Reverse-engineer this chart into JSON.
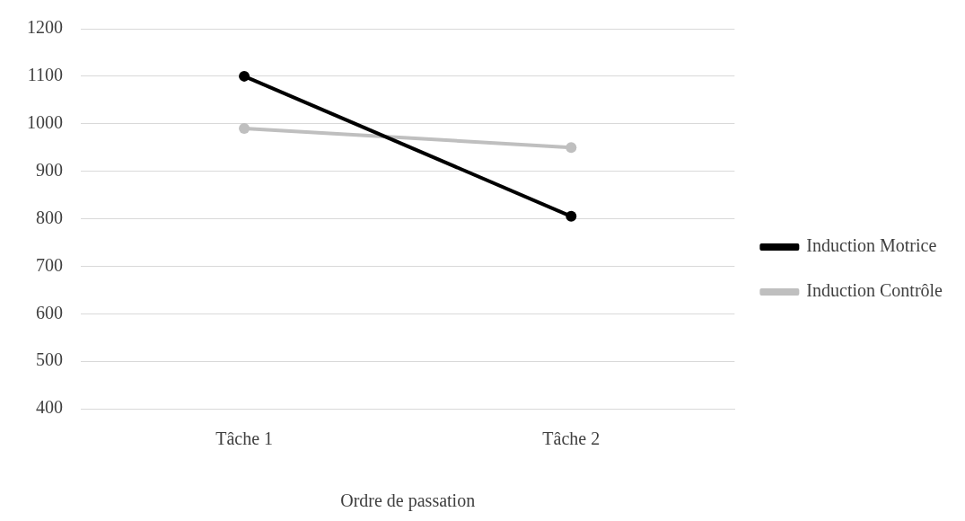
{
  "chart_data": {
    "type": "line",
    "xlabel": "Ordre de passation",
    "categories": [
      "Tâche 1",
      "Tâche 2"
    ],
    "series": [
      {
        "name": "Induction Motrice",
        "color": "#000000",
        "values": [
          1100,
          805
        ]
      },
      {
        "name": "Induction Contrôle",
        "color": "#bfbfbf",
        "values": [
          990,
          950
        ]
      }
    ],
    "ylim": [
      400,
      1200
    ],
    "yticks": [
      400,
      500,
      600,
      700,
      800,
      900,
      1000,
      1100,
      1200
    ],
    "grid": "y",
    "legend": "right",
    "marker": "circle",
    "line_style": "solid"
  }
}
